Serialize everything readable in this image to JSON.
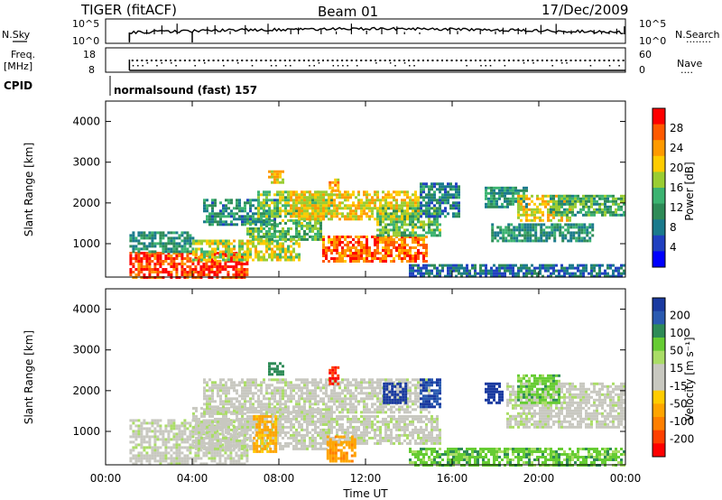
{
  "header": {
    "radar": "TIGER (fitACF)",
    "beam": "Beam 01",
    "date": "17/Dec/2009"
  },
  "top_labels": {
    "nsky": "N.Sky",
    "nsearch": "N.Search",
    "nsearch_dots": "········",
    "freq": "Freq.",
    "freq_unit": "[MHz]",
    "nave": "Nave",
    "nave_dots": "····",
    "cpid": "CPID",
    "cpid_value": "normalsound (fast) 157",
    "noise_tick_hi": "10^5",
    "noise_tick_lo": "10^0",
    "freq_tick_hi": "18",
    "freq_tick_lo": "8",
    "nave_tick_hi": "60",
    "nave_tick_lo": "0"
  },
  "chart_data": [
    {
      "type": "heatmap",
      "name": "power",
      "ylabel": "Slant Range [km]",
      "ylim": [
        180,
        4500
      ],
      "yticks": [
        "1000",
        "2000",
        "3000",
        "4000"
      ],
      "xlim": [
        0,
        24
      ],
      "colorbar": {
        "label": "Power [dB]",
        "ticks": [
          "28",
          "24",
          "20",
          "16",
          "12",
          "8",
          "4"
        ],
        "colors": [
          "#ff0000",
          "#ff5a00",
          "#ff9a00",
          "#ffcc00",
          "#9acd32",
          "#3cb371",
          "#2e8b57",
          "#1a7a8c",
          "#2040c0",
          "#0000ff"
        ]
      },
      "regions": [
        {
          "t0": 1.1,
          "t1": 6.5,
          "r0": 200,
          "r1": 800,
          "level": 28
        },
        {
          "t0": 1.1,
          "t1": 4.0,
          "r0": 800,
          "r1": 1300,
          "level": 10
        },
        {
          "t0": 4.0,
          "t1": 9.0,
          "r0": 600,
          "r1": 1100,
          "level": 18
        },
        {
          "t0": 6.5,
          "t1": 10.0,
          "r0": 1100,
          "r1": 1600,
          "level": 14
        },
        {
          "t0": 4.5,
          "t1": 8.0,
          "r0": 1500,
          "r1": 2100,
          "level": 9
        },
        {
          "t0": 7.0,
          "t1": 10.5,
          "r0": 1700,
          "r1": 2300,
          "level": 16
        },
        {
          "t0": 8.5,
          "t1": 14.5,
          "r0": 1600,
          "r1": 2300,
          "level": 20
        },
        {
          "t0": 10.0,
          "t1": 14.8,
          "r0": 600,
          "r1": 1200,
          "level": 26
        },
        {
          "t0": 12.5,
          "t1": 15.5,
          "r0": 1200,
          "r1": 1900,
          "level": 14
        },
        {
          "t0": 14.5,
          "t1": 16.3,
          "r0": 1700,
          "r1": 2500,
          "level": 8
        },
        {
          "t0": 7.5,
          "t1": 8.2,
          "r0": 2500,
          "r1": 2800,
          "level": 20
        },
        {
          "t0": 10.3,
          "t1": 10.8,
          "r0": 2300,
          "r1": 2600,
          "level": 22
        },
        {
          "t0": 17.5,
          "t1": 19.5,
          "r0": 1900,
          "r1": 2400,
          "level": 10
        },
        {
          "t0": 19.0,
          "t1": 21.5,
          "r0": 1600,
          "r1": 2200,
          "level": 20
        },
        {
          "t0": 20.5,
          "t1": 24.0,
          "r0": 1700,
          "r1": 2200,
          "level": 12
        },
        {
          "t0": 17.8,
          "t1": 22.5,
          "r0": 1100,
          "r1": 1500,
          "level": 10
        },
        {
          "t0": 14.0,
          "t1": 24.0,
          "r0": 200,
          "r1": 500,
          "level": 6
        }
      ]
    },
    {
      "type": "heatmap",
      "name": "velocity",
      "ylabel": "Slant Range [km]",
      "ylim": [
        180,
        4500
      ],
      "yticks": [
        "1000",
        "2000",
        "3000",
        "4000"
      ],
      "xlim": [
        0,
        24
      ],
      "xticks": [
        "00:00",
        "04:00",
        "08:00",
        "12:00",
        "16:00",
        "20:00",
        "00:00"
      ],
      "xlabel": "Time UT",
      "colorbar": {
        "label": "Velocity [m s⁻¹]",
        "ticks": [
          "200",
          "100",
          "50",
          "15",
          "-15",
          "-50",
          "-100",
          "-200"
        ],
        "colors": [
          "#1a3aa0",
          "#2a5ab0",
          "#2e8b57",
          "#66cc33",
          "#aadd66",
          "#c8c8c0",
          "#c8c8c0",
          "#ffcc00",
          "#ffa500",
          "#ff7f00",
          "#ff4000",
          "#ff0000"
        ]
      },
      "regions": [
        {
          "t0": 1.1,
          "t1": 6.5,
          "r0": 200,
          "r1": 1300,
          "level": 0
        },
        {
          "t0": 4.0,
          "t1": 10.5,
          "r0": 600,
          "r1": 1600,
          "level": 0
        },
        {
          "t0": 4.5,
          "t1": 15.0,
          "r0": 1500,
          "r1": 2300,
          "level": 0
        },
        {
          "t0": 10.0,
          "t1": 15.5,
          "r0": 700,
          "r1": 1400,
          "level": 0
        },
        {
          "t0": 6.8,
          "t1": 7.8,
          "r0": 500,
          "r1": 1400,
          "level": -40
        },
        {
          "t0": 10.2,
          "t1": 11.5,
          "r0": 300,
          "r1": 900,
          "level": -50
        },
        {
          "t0": 7.5,
          "t1": 8.2,
          "r0": 2400,
          "r1": 2700,
          "level": 60
        },
        {
          "t0": 10.3,
          "t1": 10.8,
          "r0": 2200,
          "r1": 2600,
          "level": -150
        },
        {
          "t0": 12.8,
          "t1": 13.8,
          "r0": 1700,
          "r1": 2200,
          "level": 200
        },
        {
          "t0": 14.5,
          "t1": 15.5,
          "r0": 1600,
          "r1": 2300,
          "level": 150
        },
        {
          "t0": 17.5,
          "t1": 18.3,
          "r0": 1700,
          "r1": 2200,
          "level": 200
        },
        {
          "t0": 18.5,
          "t1": 24.0,
          "r0": 1100,
          "r1": 2200,
          "level": 0
        },
        {
          "t0": 19.0,
          "t1": 21.0,
          "r0": 1700,
          "r1": 2400,
          "level": 30
        },
        {
          "t0": 14.0,
          "t1": 24.0,
          "r0": 200,
          "r1": 600,
          "level": 30
        }
      ]
    }
  ]
}
